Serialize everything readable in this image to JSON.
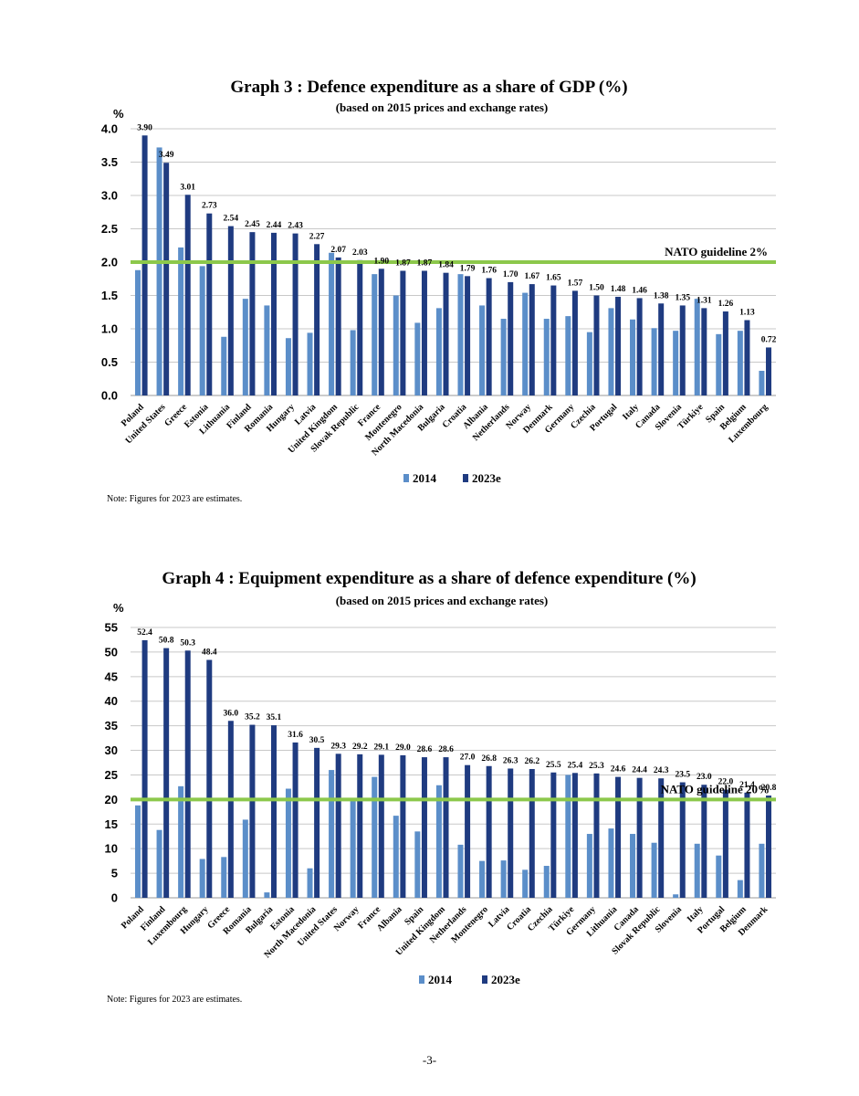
{
  "chart_data": [
    {
      "type": "bar",
      "title": "Graph 3 : Defence expenditure as a share of GDP (%)",
      "subtitle": "(based on 2015 prices and exchange rates)",
      "ylabel": "%",
      "ylim": [
        0,
        4
      ],
      "yticks": [
        "0.0",
        "0.5",
        "1.0",
        "1.5",
        "2.0",
        "2.5",
        "3.0",
        "3.5",
        "4.0"
      ],
      "categories": [
        "Poland",
        "United States",
        "Greece",
        "Estonia",
        "Lithuania",
        "Finland",
        "Romania",
        "Hungary",
        "Latvia",
        "United Kingdom",
        "Slovak Republic",
        "France",
        "Montenegro",
        "North Macedonia",
        "Bulgaria",
        "Croatia",
        "Albania",
        "Netherlands",
        "Norway",
        "Denmark",
        "Germany",
        "Czechia",
        "Portugal",
        "Italy",
        "Canada",
        "Slovenia",
        "Türkiye",
        "Spain",
        "Belgium",
        "Luxembourg"
      ],
      "series": [
        {
          "name": "2014",
          "color": "#5b8ec9",
          "values": [
            1.88,
            3.72,
            2.22,
            1.94,
            0.88,
            1.45,
            1.35,
            0.86,
            0.94,
            2.14,
            0.98,
            1.82,
            1.5,
            1.09,
            1.31,
            1.82,
            1.35,
            1.15,
            1.54,
            1.15,
            1.19,
            0.95,
            1.31,
            1.14,
            1.01,
            0.97,
            1.45,
            0.92,
            0.97,
            0.37
          ]
        },
        {
          "name": "2023e",
          "color": "#1f3b80",
          "values": [
            3.9,
            3.49,
            3.01,
            2.73,
            2.54,
            2.45,
            2.44,
            2.43,
            2.27,
            2.07,
            2.03,
            1.9,
            1.87,
            1.87,
            1.84,
            1.79,
            1.76,
            1.7,
            1.67,
            1.65,
            1.57,
            1.5,
            1.48,
            1.46,
            1.38,
            1.35,
            1.31,
            1.26,
            1.13,
            0.72
          ]
        }
      ],
      "value_labels": [
        "3.90",
        "3.49",
        "3.01",
        "2.73",
        "2.54",
        "2.45",
        "2.44",
        "2.43",
        "2.27",
        "2.07",
        "2.03",
        "1.90",
        "1.87",
        "1.87",
        "1.84",
        "1.79",
        "1.76",
        "1.70",
        "1.67",
        "1.65",
        "1.57",
        "1.50",
        "1.48",
        "1.46",
        "1.38",
        "1.35",
        "1.31",
        "1.26",
        "1.13",
        "0.72"
      ],
      "guideline": {
        "value": 2.0,
        "label": "NATO guideline 2%",
        "color": "#8cc84b"
      },
      "legend": [
        "2014",
        "2023e"
      ],
      "note": "Note: Figures for 2023 are estimates."
    },
    {
      "type": "bar",
      "title": "Graph 4 : Equipment expenditure as a share of defence expenditure (%)",
      "subtitle": "(based on 2015 prices and exchange rates)",
      "ylabel": "%",
      "ylim": [
        0,
        55
      ],
      "yticks": [
        "0",
        "5",
        "10",
        "15",
        "20",
        "25",
        "30",
        "35",
        "40",
        "45",
        "50",
        "55"
      ],
      "categories": [
        "Poland",
        "Finland",
        "Luxembourg",
        "Hungary",
        "Greece",
        "Romania",
        "Bulgaria",
        "Estonia",
        "North Macedonia",
        "United States",
        "Norway",
        "France",
        "Albania",
        "Spain",
        "United Kingdom",
        "Netherlands",
        "Montenegro",
        "Latvia",
        "Croatia",
        "Czechia",
        "Türkiye",
        "Germany",
        "Lithuania",
        "Canada",
        "Slovak Republic",
        "Slovenia",
        "Italy",
        "Portugal",
        "Belgium",
        "Denmark"
      ],
      "series": [
        {
          "name": "2014",
          "color": "#5b8ec9",
          "values": [
            18.8,
            13.8,
            22.7,
            7.9,
            8.3,
            15.9,
            1.1,
            22.2,
            6.0,
            26.0,
            19.8,
            24.6,
            16.7,
            13.5,
            22.9,
            10.8,
            7.5,
            7.6,
            5.7,
            6.5,
            25.0,
            13.0,
            14.1,
            13.0,
            11.2,
            0.7,
            11.0,
            8.6,
            3.6,
            11.0
          ]
        },
        {
          "name": "2023e",
          "color": "#1f3b80",
          "values": [
            52.4,
            50.8,
            50.3,
            48.4,
            36.0,
            35.2,
            35.1,
            31.6,
            30.5,
            29.3,
            29.2,
            29.1,
            29.0,
            28.6,
            28.6,
            27.0,
            26.8,
            26.3,
            26.2,
            25.5,
            25.4,
            25.3,
            24.6,
            24.4,
            24.3,
            23.5,
            23.0,
            22.0,
            21.4,
            20.8
          ]
        }
      ],
      "value_labels": [
        "52.4",
        "50.8",
        "50.3",
        "48.4",
        "36.0",
        "35.2",
        "35.1",
        "31.6",
        "30.5",
        "29.3",
        "29.2",
        "29.1",
        "29.0",
        "28.6",
        "28.6",
        "27.0",
        "26.8",
        "26.3",
        "26.2",
        "25.5",
        "25.4",
        "25.3",
        "24.6",
        "24.4",
        "24.3",
        "23.5",
        "23.0",
        "22.0",
        "21.4",
        "20.8"
      ],
      "guideline": {
        "value": 20,
        "label": "NATO guideline 20%",
        "color": "#8cc84b"
      },
      "legend": [
        "2014",
        "2023e"
      ],
      "note": "Note: Figures for 2023 are estimates."
    }
  ],
  "page_number": "-3-"
}
